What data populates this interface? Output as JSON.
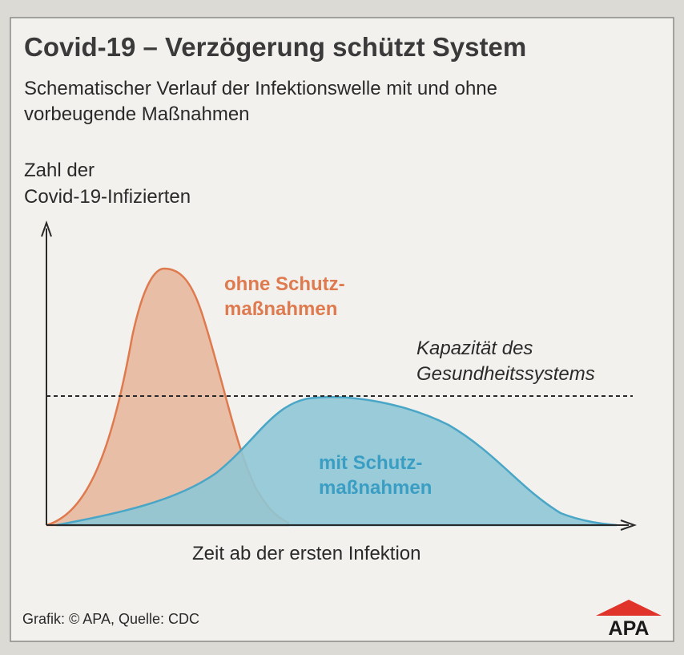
{
  "title": "Covid-19 – Verzögerung schützt System",
  "subtitle": [
    "Schematischer Verlauf der Infektionswelle mit und ohne",
    "vorbeugende Maßnahmen"
  ],
  "y_axis_label": [
    "Zahl der",
    "Covid-19-Infizierten"
  ],
  "x_axis_label": "Zeit ab der ersten Infektion",
  "curves": [
    {
      "label": [
        "ohne Schutz-",
        "maßnahmen"
      ]
    },
    {
      "label": [
        "mit Schutz-",
        "maßnahmen"
      ]
    }
  ],
  "capacity_label": [
    "Kapazität des",
    "Gesundheitssystems"
  ],
  "source": "Grafik: © APA, Quelle: CDC",
  "logo": "APA"
}
